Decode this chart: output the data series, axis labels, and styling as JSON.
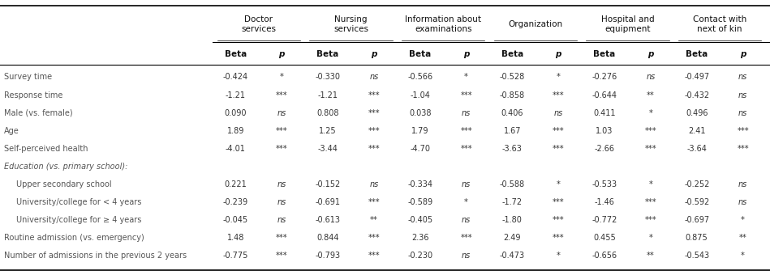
{
  "col_headers_line1": [
    "Doctor\nservices",
    "Nursing\nservices",
    "Information about\nexaminations",
    "Organization",
    "Hospital and\nequipment",
    "Contact with\nnext of kin"
  ],
  "sub_headers": [
    "Beta",
    "p",
    "Beta",
    "p",
    "Beta",
    "p",
    "Beta",
    "p",
    "Beta",
    "p",
    "Beta",
    "p"
  ],
  "row_labels": [
    "Survey time",
    "Response time",
    "Male (vs. female)",
    "Age",
    "Self-perceived health",
    "Education (vs. primary school):",
    "Upper secondary school",
    "University/college for < 4 years",
    "University/college for ≥ 4 years",
    "Routine admission (vs. emergency)",
    "Number of admissions in the previous 2 years"
  ],
  "row_label_italic": [
    false,
    false,
    false,
    false,
    false,
    true,
    false,
    false,
    false,
    false,
    false
  ],
  "row_label_indent": [
    false,
    false,
    false,
    false,
    false,
    false,
    true,
    true,
    true,
    false,
    false
  ],
  "row_has_data": [
    true,
    true,
    true,
    true,
    true,
    false,
    true,
    true,
    true,
    true,
    true
  ],
  "data": [
    [
      "-0.424",
      "*",
      "-0.330",
      "ns",
      "-0.566",
      "*",
      "-0.528",
      "*",
      "-0.276",
      "ns",
      "-0.497",
      "ns"
    ],
    [
      "-1.21",
      "***",
      "-1.21",
      "***",
      "-1.04",
      "***",
      "-0.858",
      "***",
      "-0.644",
      "**",
      "-0.432",
      "ns"
    ],
    [
      "0.090",
      "ns",
      "0.808",
      "***",
      "0.038",
      "ns",
      "0.406",
      "ns",
      "0.411",
      "*",
      "0.496",
      "ns"
    ],
    [
      "1.89",
      "***",
      "1.25",
      "***",
      "1.79",
      "***",
      "1.67",
      "***",
      "1.03",
      "***",
      "2.41",
      "***"
    ],
    [
      "-4.01",
      "***",
      "-3.44",
      "***",
      "-4.70",
      "***",
      "-3.63",
      "***",
      "-2.66",
      "***",
      "-3.64",
      "***"
    ],
    [
      "",
      "",
      "",
      "",
      "",
      "",
      "",
      "",
      "",
      "",
      "",
      ""
    ],
    [
      "0.221",
      "ns",
      "-0.152",
      "ns",
      "-0.334",
      "ns",
      "-0.588",
      "*",
      "-0.533",
      "*",
      "-0.252",
      "ns"
    ],
    [
      "-0.239",
      "ns",
      "-0.691",
      "***",
      "-0.589",
      "*",
      "-1.72",
      "***",
      "-1.46",
      "***",
      "-0.592",
      "ns"
    ],
    [
      "-0.045",
      "ns",
      "-0.613",
      "**",
      "-0.405",
      "ns",
      "-1.80",
      "***",
      "-0.772",
      "***",
      "-0.697",
      "*"
    ],
    [
      "1.48",
      "***",
      "0.844",
      "***",
      "2.36",
      "***",
      "2.49",
      "***",
      "0.455",
      "*",
      "0.875",
      "**"
    ],
    [
      "-0.775",
      "***",
      "-0.793",
      "***",
      "-0.230",
      "ns",
      "-0.473",
      "*",
      "-0.656",
      "**",
      "-0.543",
      "*"
    ]
  ],
  "background_color": "#ffffff",
  "text_color": "#333333",
  "header_color": "#111111",
  "label_color": "#555555",
  "fig_width": 9.49,
  "fig_height": 3.4,
  "dpi": 100
}
